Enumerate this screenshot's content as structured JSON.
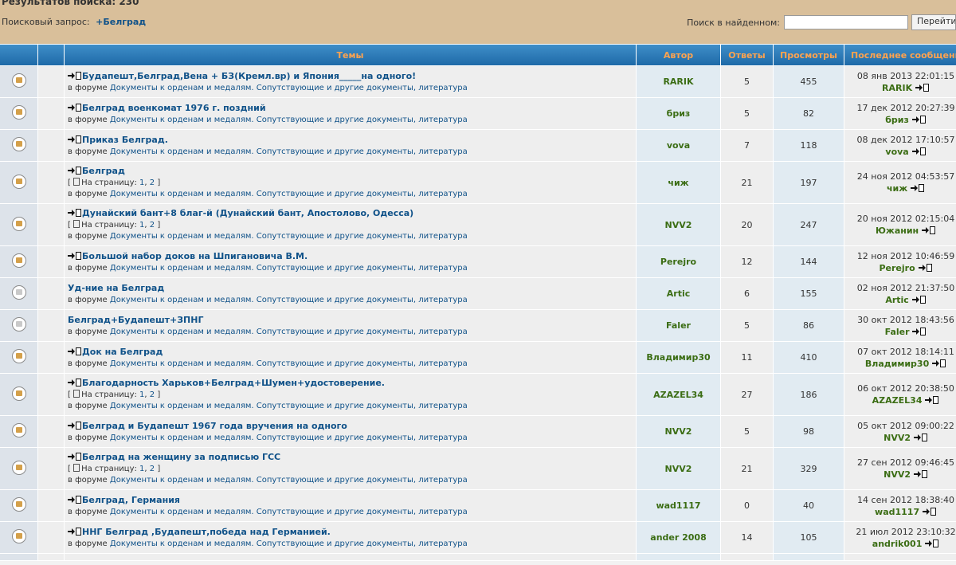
{
  "header": {
    "results_label": "Результатов поиска: 230",
    "query_label": "Поисковый запрос:",
    "query_value": "+Белград",
    "search_within_label": "Поиск в найденном:",
    "search_within_value": "",
    "search_button": "Перейти"
  },
  "columns": {
    "topics": "Темы",
    "author": "Автор",
    "replies": "Ответы",
    "views": "Просмотры",
    "last_post": "Последнее сообщение"
  },
  "pages_prefix": "На страницу:",
  "forum_prefix": "в форуме",
  "forum_name": "Документы к орденам и медалям. Сопутствующие и другие документы, литература",
  "rows": [
    {
      "title": "Будапешт,Белград,Вена + БЗ(Кремл.вр) и Япония_____на одного!",
      "goto": true,
      "pages": [],
      "author": "RARIK",
      "replies": "5",
      "views": "455",
      "last_date": "08 янв 2013 22:01:15",
      "last_by": "RARIK",
      "icon": "unread"
    },
    {
      "title": "Белград военкомат 1976 г. поздний",
      "goto": true,
      "pages": [],
      "author": "бриз",
      "replies": "5",
      "views": "82",
      "last_date": "17 дек 2012 20:27:39",
      "last_by": "бриз",
      "icon": "unread"
    },
    {
      "title": "Приказ Белград.",
      "goto": true,
      "pages": [],
      "author": "vova",
      "replies": "7",
      "views": "118",
      "last_date": "08 дек 2012 17:10:57",
      "last_by": "vova",
      "icon": "unread"
    },
    {
      "title": "Белград",
      "goto": true,
      "pages": [
        "1",
        "2"
      ],
      "author": "чиж",
      "replies": "21",
      "views": "197",
      "last_date": "24 ноя 2012 04:53:57",
      "last_by": "чиж",
      "icon": "unread"
    },
    {
      "title": "Дунайский бант+8 благ-й (Дунайский бант, Апостолово, Одесса)",
      "goto": true,
      "pages": [
        "1",
        "2"
      ],
      "author": "NVV2",
      "replies": "20",
      "views": "247",
      "last_date": "20 ноя 2012 02:15:04",
      "last_by": "Южанин",
      "icon": "unread"
    },
    {
      "title": "Большой набор доков на Шпигановича В.М.",
      "goto": true,
      "pages": [],
      "author": "Perejro",
      "replies": "12",
      "views": "144",
      "last_date": "12 ноя 2012 10:46:59",
      "last_by": "Perejro",
      "icon": "unread"
    },
    {
      "title": "Уд-ние на Белград",
      "goto": false,
      "pages": [],
      "author": "Artic",
      "replies": "6",
      "views": "155",
      "last_date": "02 ноя 2012 21:37:50",
      "last_by": "Artic",
      "icon": "read"
    },
    {
      "title": "Белград+Будапешт+ЗПНГ",
      "goto": false,
      "pages": [],
      "author": "Faler",
      "replies": "5",
      "views": "86",
      "last_date": "30 окт 2012 18:43:56",
      "last_by": "Faler",
      "icon": "read"
    },
    {
      "title": "Док на Белград",
      "goto": true,
      "pages": [],
      "author": "Владимир30",
      "replies": "11",
      "views": "410",
      "last_date": "07 окт 2012 18:14:11",
      "last_by": "Владимир30",
      "icon": "unread"
    },
    {
      "title": "Благодарность Харьков+Белград+Шумен+удостоверение.",
      "goto": true,
      "pages": [
        "1",
        "2"
      ],
      "author": "AZAZEL34",
      "replies": "27",
      "views": "186",
      "last_date": "06 окт 2012 20:38:50",
      "last_by": "AZAZEL34",
      "icon": "unread"
    },
    {
      "title": "Белград и Будапешт 1967 года вручения на одного",
      "goto": true,
      "pages": [],
      "author": "NVV2",
      "replies": "5",
      "views": "98",
      "last_date": "05 окт 2012 09:00:22",
      "last_by": "NVV2",
      "icon": "unread"
    },
    {
      "title": "Белград на женщину за подписью ГСС",
      "goto": true,
      "pages": [
        "1",
        "2"
      ],
      "author": "NVV2",
      "replies": "21",
      "views": "329",
      "last_date": "27 сен 2012 09:46:45",
      "last_by": "NVV2",
      "icon": "unread"
    },
    {
      "title": "Белград, Германия",
      "goto": true,
      "pages": [],
      "author": "wad1117",
      "replies": "0",
      "views": "40",
      "last_date": "14 сен 2012 18:38:40",
      "last_by": "wad1117",
      "icon": "unread"
    },
    {
      "title": "ННГ Белград ,Будапешт,победа над Германией.",
      "goto": true,
      "pages": [],
      "author": "ander 2008",
      "replies": "14",
      "views": "105",
      "last_date": "21 июл 2012 23:10:32",
      "last_by": "andrik001",
      "icon": "unread"
    },
    {
      "title": "",
      "goto": false,
      "pages": [],
      "author": "",
      "replies": "",
      "views": "",
      "last_date": "",
      "last_by": "",
      "icon": "none"
    }
  ]
}
